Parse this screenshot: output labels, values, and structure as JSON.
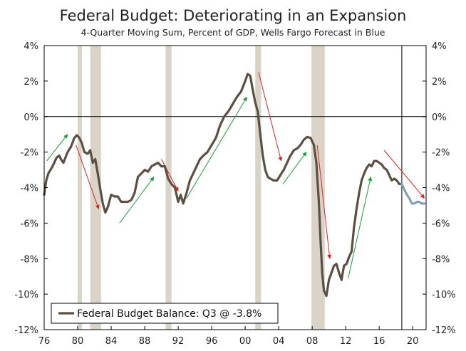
{
  "chart_data": {
    "type": "line",
    "title": "Federal Budget: Deteriorating in an Expansion",
    "subtitle": "4-Quarter Moving Sum, Percent of GDP, Wells Fargo Forecast in Blue",
    "xlabel": "",
    "ylabel": "",
    "xlim": [
      1976,
      2021.6
    ],
    "ylim": [
      -12,
      4
    ],
    "x_ticks": [
      76,
      80,
      84,
      88,
      92,
      96,
      "00",
      "04",
      "08",
      12,
      16,
      20
    ],
    "y_tick_labels": [
      "4%",
      "2%",
      "0%",
      "-2%",
      "-4%",
      "-6%",
      "-8%",
      "-10%",
      "-12%"
    ],
    "y_tick_values": [
      4,
      2,
      0,
      -2,
      -4,
      -6,
      -8,
      -10,
      -12
    ],
    "grid": false,
    "legend": {
      "position": "bottom-left",
      "label": "Federal Budget Balance: Q3 @ -3.8%"
    },
    "colors": {
      "actual": "#5b4f44",
      "forecast": "#7fa2b8",
      "recession": "#d9d4c7",
      "arrow_up": "#1a9a3a",
      "arrow_down": "#e02020"
    },
    "recessions": [
      [
        1980.0,
        1980.5
      ],
      [
        1981.5,
        1982.8
      ],
      [
        1990.5,
        1991.2
      ],
      [
        2001.2,
        2001.9
      ],
      [
        2007.9,
        2009.5
      ]
    ],
    "forecast_start": 2018.7,
    "series": [
      {
        "name": "Federal Budget Balance: Q3 @ -3.8%",
        "x": [
          1976.0,
          1976.25,
          1976.5,
          1977.0,
          1977.5,
          1977.8,
          1978.0,
          1978.3,
          1978.8,
          1979.2,
          1979.6,
          1979.9,
          1980.2,
          1980.5,
          1980.8,
          1981.2,
          1981.5,
          1981.8,
          1982.1,
          1982.4,
          1982.7,
          1983.0,
          1983.3,
          1983.6,
          1984.0,
          1984.4,
          1984.8,
          1985.2,
          1985.6,
          1986.0,
          1986.4,
          1986.8,
          1987.2,
          1987.6,
          1988.0,
          1988.4,
          1988.8,
          1989.2,
          1989.6,
          1990.0,
          1990.4,
          1990.8,
          1991.2,
          1991.6,
          1992.0,
          1992.3,
          1992.6,
          1993.0,
          1993.4,
          1993.8,
          1994.2,
          1994.6,
          1995.0,
          1995.5,
          1996.0,
          1996.5,
          1997.0,
          1997.5,
          1998.0,
          1998.5,
          1999.0,
          1999.5,
          2000.0,
          2000.3,
          2000.6,
          2000.9,
          2001.2,
          2001.5,
          2001.8,
          2002.1,
          2002.4,
          2002.7,
          2003.0,
          2003.4,
          2003.8,
          2004.2,
          2004.6,
          2005.0,
          2005.4,
          2005.8,
          2006.2,
          2006.6,
          2007.0,
          2007.4,
          2007.8,
          2008.2,
          2008.5,
          2008.8,
          2009.0,
          2009.2,
          2009.4,
          2009.7,
          2010.0,
          2010.3,
          2010.6,
          2010.9,
          2011.2,
          2011.5,
          2011.8,
          2012.1,
          2012.4,
          2012.7,
          2013.0,
          2013.3,
          2013.6,
          2013.9,
          2014.2,
          2014.5,
          2014.8,
          2015.1,
          2015.4,
          2015.7,
          2016.0,
          2016.3,
          2016.6,
          2016.9,
          2017.2,
          2017.5,
          2017.8,
          2018.1,
          2018.4,
          2018.7
        ],
        "y": [
          -4.4,
          -3.6,
          -3.2,
          -2.8,
          -2.3,
          -2.2,
          -2.4,
          -2.6,
          -2.0,
          -1.7,
          -1.2,
          -1.05,
          -1.2,
          -1.5,
          -2.0,
          -2.1,
          -1.9,
          -2.6,
          -2.4,
          -3.2,
          -4.1,
          -4.9,
          -5.4,
          -5.1,
          -4.4,
          -4.5,
          -4.5,
          -4.8,
          -4.8,
          -4.8,
          -4.7,
          -4.3,
          -3.4,
          -3.2,
          -3.0,
          -3.1,
          -2.8,
          -2.7,
          -2.6,
          -2.8,
          -2.8,
          -3.5,
          -3.8,
          -4.0,
          -4.8,
          -4.4,
          -4.9,
          -4.3,
          -3.6,
          -3.2,
          -2.8,
          -2.4,
          -2.2,
          -2.0,
          -1.6,
          -1.2,
          -0.5,
          0.0,
          0.3,
          0.7,
          1.1,
          1.4,
          2.0,
          2.4,
          2.3,
          1.5,
          0.8,
          0.3,
          -1.0,
          -2.2,
          -3.0,
          -3.4,
          -3.5,
          -3.6,
          -3.6,
          -3.3,
          -3.0,
          -2.6,
          -2.2,
          -1.9,
          -1.8,
          -1.6,
          -1.3,
          -1.15,
          -1.2,
          -1.6,
          -2.6,
          -4.8,
          -7.0,
          -8.8,
          -9.8,
          -10.1,
          -9.2,
          -8.8,
          -8.4,
          -8.3,
          -8.8,
          -9.2,
          -8.4,
          -8.3,
          -7.9,
          -7.6,
          -6.2,
          -5.2,
          -4.3,
          -3.6,
          -3.2,
          -2.9,
          -2.7,
          -2.8,
          -2.5,
          -2.5,
          -2.6,
          -2.7,
          -2.9,
          -3.0,
          -3.3,
          -3.6,
          -3.5,
          -3.6,
          -3.8,
          -3.8
        ]
      },
      {
        "name": "Wells Fargo Forecast",
        "x": [
          2018.7,
          2019.0,
          2019.3,
          2019.6,
          2019.9,
          2020.2,
          2020.5,
          2020.8,
          2021.1,
          2021.4
        ],
        "y": [
          -3.8,
          -4.1,
          -4.4,
          -4.6,
          -4.9,
          -4.9,
          -4.8,
          -4.8,
          -4.9,
          -4.9
        ]
      }
    ],
    "arrows": [
      {
        "kind": "up",
        "from": [
          1976.3,
          -2.5
        ],
        "to": [
          1978.8,
          -1.0
        ]
      },
      {
        "kind": "down",
        "from": [
          1979.8,
          -1.6
        ],
        "to": [
          1982.5,
          -5.2
        ]
      },
      {
        "kind": "up",
        "from": [
          1985.0,
          -6.0
        ],
        "to": [
          1989.1,
          -3.4
        ]
      },
      {
        "kind": "down",
        "from": [
          1990.0,
          -2.4
        ],
        "to": [
          1992.0,
          -4.2
        ]
      },
      {
        "kind": "up",
        "from": [
          1993.0,
          -4.6
        ],
        "to": [
          2000.2,
          1.1
        ]
      },
      {
        "kind": "down",
        "from": [
          2001.6,
          2.5
        ],
        "to": [
          2004.3,
          -2.5
        ]
      },
      {
        "kind": "up",
        "from": [
          2004.5,
          -3.8
        ],
        "to": [
          2007.3,
          -2.0
        ]
      },
      {
        "kind": "down",
        "from": [
          2008.6,
          -1.6
        ],
        "to": [
          2010.1,
          -8.0
        ]
      },
      {
        "kind": "up",
        "from": [
          2012.3,
          -9.1
        ],
        "to": [
          2015.0,
          -3.4
        ]
      },
      {
        "kind": "down",
        "from": [
          2016.6,
          -1.9
        ],
        "to": [
          2021.4,
          -4.6
        ]
      }
    ]
  }
}
